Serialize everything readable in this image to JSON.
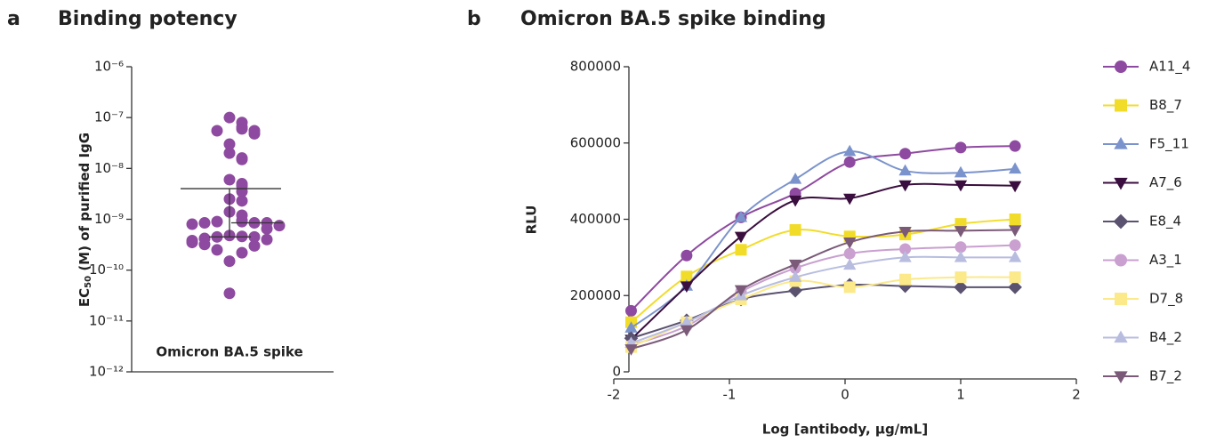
{
  "chart_data": [
    {
      "type": "dotplot",
      "letter": "a",
      "title": "Binding potency",
      "y_label_main": "EC",
      "y_label_sub": "50",
      "y_label_rest": " (M) of purified IgG",
      "category": "Omicron BA.5 spike",
      "ylog": true,
      "color": "#8e4aa0",
      "ylim": [
        1e-12,
        1e-06
      ],
      "yticks": [
        {
          "value": 1e-12,
          "label": "10⁻¹²"
        },
        {
          "value": 1e-11,
          "label": "10⁻¹¹"
        },
        {
          "value": 1e-10,
          "label": "10⁻¹⁰"
        },
        {
          "value": 1e-09,
          "label": "10⁻⁹"
        },
        {
          "value": 1e-08,
          "label": "10⁻⁸"
        },
        {
          "value": 1e-07,
          "label": "10⁻⁷"
        },
        {
          "value": 1e-06,
          "label": "10⁻⁶"
        }
      ],
      "values": [
        1e-07,
        8e-08,
        6.5e-08,
        6e-08,
        5.5e-08,
        5.5e-08,
        4.8e-08,
        3e-08,
        2e-08,
        1.6e-08,
        1.5e-08,
        6e-09,
        5e-09,
        4.5e-09,
        3.5e-09,
        2.5e-09,
        2.3e-09,
        1.4e-09,
        1.2e-09,
        9.5e-10,
        9e-10,
        9e-10,
        8.5e-10,
        8.5e-10,
        8.5e-10,
        8e-10,
        7.5e-10,
        6.5e-10,
        4.8e-10,
        4.6e-10,
        4.5e-10,
        4.5e-10,
        4.2e-10,
        4e-10,
        3.8e-10,
        3.5e-10,
        3.2e-10,
        3e-10,
        2.5e-10,
        2.2e-10,
        1.5e-10,
        3.5e-11
      ],
      "lines": [
        4e-09,
        8.5e-10,
        4.5e-10
      ]
    },
    {
      "type": "line",
      "letter": "b",
      "title": "Omicron BA.5 spike binding",
      "x_label": "Log [antibody, µg/mL]",
      "y_label": "RLU",
      "x": [
        -1.85,
        -1.37,
        -0.9,
        -0.43,
        0.04,
        0.52,
        1.0,
        1.47
      ],
      "xlim": [
        -2,
        2
      ],
      "xticks": [
        -2,
        -1,
        0,
        1,
        2
      ],
      "ylim": [
        0,
        800000
      ],
      "yticks": [
        0,
        200000,
        400000,
        600000,
        800000
      ],
      "series": [
        {
          "name": "A11_4",
          "color": "#8e4aa0",
          "marker": "circle",
          "values": [
            160000,
            305000,
            405000,
            468000,
            550000,
            572000,
            588000,
            592000
          ]
        },
        {
          "name": "B8_7",
          "color": "#f2dc2a",
          "marker": "square",
          "values": [
            130000,
            250000,
            320000,
            372000,
            355000,
            360000,
            388000,
            400000
          ]
        },
        {
          "name": "F5_11",
          "color": "#7b93cc",
          "marker": "triangle",
          "values": [
            115000,
            225000,
            405000,
            505000,
            578000,
            527000,
            522000,
            532000
          ]
        },
        {
          "name": "A7_6",
          "color": "#3a0e3e",
          "marker": "triangle-down",
          "values": [
            85000,
            225000,
            355000,
            450000,
            455000,
            490000,
            490000,
            488000
          ]
        },
        {
          "name": "E8_4",
          "color": "#5b5270",
          "marker": "diamond",
          "values": [
            88000,
            135000,
            190000,
            213000,
            228000,
            225000,
            222000,
            222000
          ]
        },
        {
          "name": "A3_1",
          "color": "#c9a0d0",
          "marker": "circle",
          "values": [
            70000,
            120000,
            210000,
            272000,
            310000,
            322000,
            327000,
            332000
          ]
        },
        {
          "name": "D7_8",
          "color": "#fbe98a",
          "marker": "square",
          "values": [
            65000,
            130000,
            190000,
            238000,
            222000,
            242000,
            248000,
            248000
          ]
        },
        {
          "name": "B4_2",
          "color": "#b8bde0",
          "marker": "triangle",
          "values": [
            75000,
            130000,
            200000,
            248000,
            280000,
            300000,
            300000,
            300000
          ]
        },
        {
          "name": "B7_2",
          "color": "#7a5a78",
          "marker": "triangle-down",
          "values": [
            60000,
            110000,
            215000,
            282000,
            340000,
            368000,
            370000,
            372000
          ]
        }
      ]
    }
  ]
}
